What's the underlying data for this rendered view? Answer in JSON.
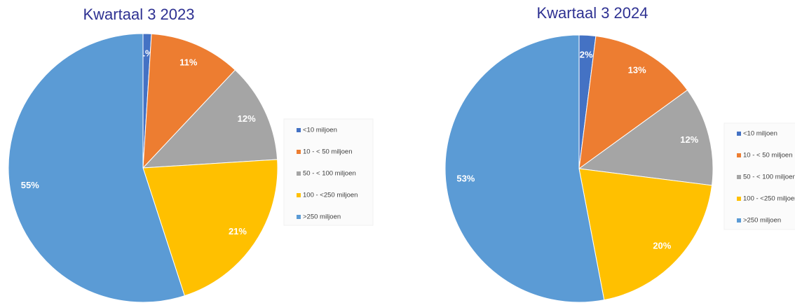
{
  "chart_data": [
    {
      "type": "pie",
      "title": "Kwartaal 3 2023",
      "categories": [
        "<10 miljoen",
        "10 - < 50 miljoen",
        "50 - < 100 miljoen",
        "100 - <250 miljoen",
        ">250 miljoen"
      ],
      "values": [
        1,
        11,
        12,
        21,
        55
      ],
      "value_labels": [
        "1%",
        "11%",
        "12%",
        "21%",
        "55%"
      ],
      "colors": [
        "#4472c4",
        "#ed7d31",
        "#a5a5a5",
        "#ffc000",
        "#5b9bd5"
      ],
      "legend": "right"
    },
    {
      "type": "pie",
      "title": "Kwartaal 3 2024",
      "categories": [
        "<10 miljoen",
        "10 - < 50 miljoen",
        "50 - < 100 miljoen",
        "100 - <250 miljoen",
        ">250 miljoen"
      ],
      "values": [
        2,
        13,
        12,
        20,
        53
      ],
      "value_labels": [
        "2%",
        "13%",
        "12%",
        "20%",
        "53%"
      ],
      "colors": [
        "#4472c4",
        "#ed7d31",
        "#a5a5a5",
        "#ffc000",
        "#5b9bd5"
      ],
      "legend": "right"
    }
  ]
}
